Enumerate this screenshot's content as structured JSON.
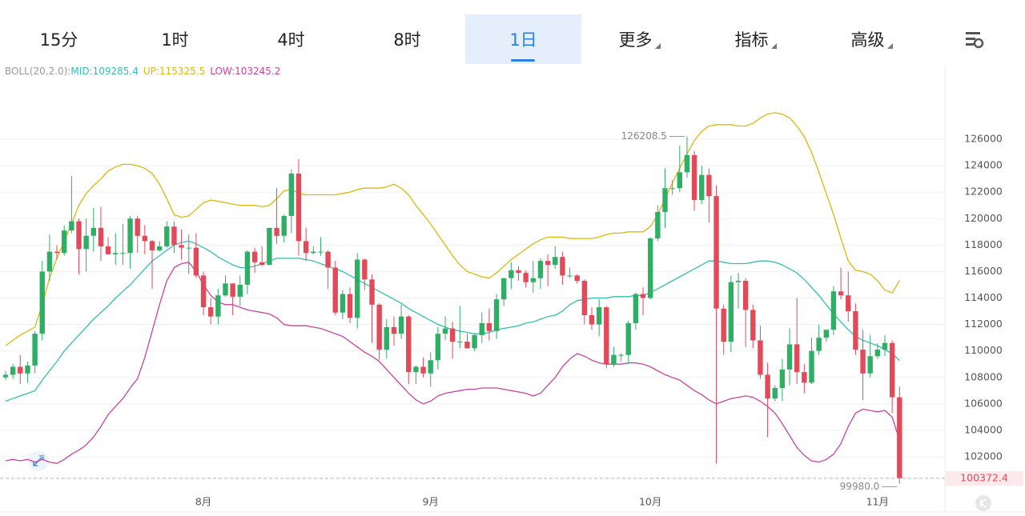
{
  "tabs": [
    "15分",
    "1时",
    "4时",
    "8时",
    "1日",
    "更多",
    "指标",
    "高级"
  ],
  "dropdown_tabs": [
    5,
    6,
    7
  ],
  "active_tab": 4,
  "chart": {
    "type": "candlestick",
    "indicator_label": "BOLL(20,2.0):",
    "up_color": "#2fae66",
    "down_color": "#e24a5a",
    "ylim": [
      99700,
      130000
    ],
    "yticks": [
      102000,
      104000,
      106000,
      108000,
      110000,
      112000,
      114000,
      116000,
      118000,
      120000,
      122000,
      124000,
      126000
    ],
    "grid": true,
    "categories": [
      null,
      null,
      null,
      null,
      null,
      null,
      null,
      null,
      null,
      null,
      null,
      null,
      null,
      null,
      null,
      null,
      null,
      null,
      null,
      null,
      null,
      null,
      null,
      null,
      null,
      null,
      null,
      "8月",
      null,
      null,
      null,
      null,
      null,
      null,
      null,
      null,
      null,
      null,
      null,
      null,
      null,
      null,
      null,
      null,
      null,
      null,
      null,
      null,
      null,
      null,
      null,
      null,
      null,
      null,
      null,
      null,
      null,
      null,
      "9月",
      null,
      null,
      null,
      null,
      null,
      null,
      null,
      null,
      null,
      null,
      null,
      null,
      null,
      null,
      null,
      null,
      null,
      null,
      null,
      null,
      null,
      null,
      null,
      null,
      null,
      null,
      null,
      null,
      null,
      "10月",
      null,
      null,
      null,
      null,
      null,
      null,
      null,
      null,
      null,
      null,
      null,
      null,
      null,
      null,
      null,
      null,
      null,
      null,
      null,
      null,
      null,
      null,
      null,
      null,
      null,
      null,
      null,
      null,
      null,
      null,
      "11月",
      null,
      null,
      null
    ],
    "candles": [
      [
        108000,
        108500,
        107800,
        108200
      ],
      [
        108200,
        109000,
        107900,
        108800
      ],
      [
        108800,
        109700,
        107500,
        108300
      ],
      [
        108300,
        109200,
        107600,
        108900
      ],
      [
        108900,
        111500,
        108300,
        111300
      ],
      [
        111300,
        116800,
        110800,
        116000
      ],
      [
        116000,
        118800,
        115300,
        117500
      ],
      [
        117500,
        118000,
        116900,
        117400
      ],
      [
        117400,
        119500,
        117200,
        119100
      ],
      [
        119100,
        123200,
        118900,
        119800
      ],
      [
        119800,
        120000,
        115800,
        117700
      ],
      [
        117700,
        120000,
        116000,
        118700
      ],
      [
        118700,
        120800,
        117500,
        119300
      ],
      [
        119300,
        120900,
        116800,
        117900
      ],
      [
        117900,
        118600,
        117300,
        117300
      ],
      [
        117300,
        118900,
        116500,
        117400
      ],
      [
        117400,
        119600,
        116500,
        117400
      ],
      [
        117400,
        120200,
        116200,
        120000
      ],
      [
        120000,
        120200,
        117400,
        118700
      ],
      [
        118700,
        119500,
        117300,
        118300
      ],
      [
        118300,
        118400,
        114700,
        117600
      ],
      [
        117600,
        118300,
        117500,
        117900
      ],
      [
        117900,
        119800,
        117800,
        119400
      ],
      [
        119400,
        119800,
        117400,
        118000
      ],
      [
        118000,
        119200,
        116900,
        117800
      ],
      [
        117800,
        118800,
        115800,
        117800
      ],
      [
        117800,
        118900,
        115500,
        115700
      ],
      [
        115700,
        116000,
        112700,
        113300
      ],
      [
        113300,
        114000,
        112000,
        112600
      ],
      [
        112600,
        114700,
        112000,
        114200
      ],
      [
        114200,
        115700,
        114100,
        115100
      ],
      [
        115100,
        115100,
        112700,
        114100
      ],
      [
        114100,
        115700,
        113400,
        115000
      ],
      [
        115000,
        117600,
        114300,
        117500
      ],
      [
        117500,
        117800,
        115900,
        116700
      ],
      [
        116700,
        117900,
        116400,
        116500
      ],
      [
        116500,
        119300,
        116500,
        119300
      ],
      [
        119300,
        122300,
        118100,
        118700
      ],
      [
        118700,
        120300,
        118200,
        120200
      ],
      [
        120200,
        123700,
        118900,
        123400
      ],
      [
        123400,
        124500,
        117200,
        118300
      ],
      [
        118300,
        119300,
        116800,
        117400
      ],
      [
        117400,
        117900,
        117300,
        117500
      ],
      [
        117500,
        118600,
        117200,
        117500
      ],
      [
        117500,
        117600,
        114700,
        116300
      ],
      [
        116300,
        116800,
        112700,
        112900
      ],
      [
        112900,
        114600,
        112400,
        114300
      ],
      [
        114300,
        114800,
        112100,
        112500
      ],
      [
        112500,
        117400,
        111700,
        116900
      ],
      [
        116900,
        117000,
        114600,
        115400
      ],
      [
        115400,
        115800,
        110600,
        113500
      ],
      [
        113500,
        113600,
        109300,
        110100
      ],
      [
        110100,
        112400,
        109400,
        111800
      ],
      [
        111800,
        112600,
        110400,
        111300
      ],
      [
        111300,
        113500,
        110900,
        112600
      ],
      [
        112600,
        112700,
        107500,
        108400
      ],
      [
        108400,
        108900,
        107500,
        108800
      ],
      [
        108800,
        109500,
        108000,
        108300
      ],
      [
        108300,
        109900,
        107300,
        109300
      ],
      [
        109300,
        111800,
        108600,
        111300
      ],
      [
        111300,
        112600,
        110800,
        111700
      ],
      [
        111700,
        112200,
        109400,
        110700
      ],
      [
        110700,
        113400,
        110200,
        110700
      ],
      [
        110700,
        111300,
        110200,
        110200
      ],
      [
        110200,
        111300,
        110000,
        111200
      ],
      [
        111200,
        112900,
        110600,
        112100
      ],
      [
        112100,
        113200,
        110800,
        111500
      ],
      [
        111500,
        114300,
        110900,
        113900
      ],
      [
        113900,
        115500,
        113400,
        115500
      ],
      [
        115500,
        116700,
        114700,
        116100
      ],
      [
        116100,
        116400,
        115300,
        115900
      ],
      [
        115900,
        116100,
        114800,
        115200
      ],
      [
        115200,
        116800,
        114400,
        115500
      ],
      [
        115500,
        117000,
        114700,
        116800
      ],
      [
        116800,
        117300,
        114900,
        116500
      ],
      [
        116500,
        117900,
        116200,
        117100
      ],
      [
        117100,
        117500,
        115000,
        115700
      ],
      [
        115700,
        116300,
        115500,
        115700
      ],
      [
        115700,
        115800,
        115100,
        115300
      ],
      [
        115300,
        115400,
        112000,
        112700
      ],
      [
        112700,
        113300,
        111600,
        112000
      ],
      [
        112000,
        113900,
        111100,
        113300
      ],
      [
        113300,
        113400,
        108700,
        109000
      ],
      [
        109000,
        110300,
        108800,
        109700
      ],
      [
        109700,
        109800,
        109200,
        109700
      ],
      [
        109700,
        112300,
        109000,
        112100
      ],
      [
        112100,
        114400,
        111600,
        114300
      ],
      [
        114300,
        114800,
        112700,
        114000
      ],
      [
        114000,
        118600,
        113900,
        118500
      ],
      [
        118500,
        121000,
        118300,
        120500
      ],
      [
        120500,
        123800,
        119300,
        122300
      ],
      [
        122300,
        122900,
        121800,
        122300
      ],
      [
        122300,
        125500,
        122000,
        123500
      ],
      [
        123500,
        126208.5,
        123100,
        124800
      ],
      [
        124800,
        125100,
        120600,
        121400
      ],
      [
        121400,
        124000,
        121100,
        123300
      ],
      [
        123300,
        123800,
        119700,
        121700
      ],
      [
        121700,
        122500,
        101500,
        113200
      ],
      [
        113200,
        113500,
        109700,
        110700
      ],
      [
        110700,
        115700,
        109900,
        115200
      ],
      [
        115200,
        115900,
        113200,
        115300
      ],
      [
        115300,
        115500,
        110300,
        113100
      ],
      [
        113100,
        113500,
        110200,
        110800
      ],
      [
        110800,
        111900,
        107900,
        108200
      ],
      [
        108200,
        109100,
        103500,
        106400
      ],
      [
        106400,
        107400,
        106200,
        107200
      ],
      [
        107200,
        109400,
        106200,
        108600
      ],
      [
        108600,
        111700,
        107400,
        110500
      ],
      [
        110500,
        114000,
        107500,
        108400
      ],
      [
        108400,
        109000,
        106800,
        107600
      ],
      [
        107600,
        111000,
        107500,
        110000
      ],
      [
        110000,
        112000,
        109700,
        111000
      ],
      [
        111000,
        111500,
        110700,
        111600
      ],
      [
        111600,
        114900,
        111200,
        114500
      ],
      [
        114500,
        116300,
        113900,
        114200
      ],
      [
        114200,
        116000,
        112200,
        113000
      ],
      [
        113000,
        113600,
        109700,
        110100
      ],
      [
        110100,
        111600,
        106300,
        108300
      ],
      [
        108300,
        111200,
        108000,
        109600
      ],
      [
        109600,
        110600,
        109400,
        110100
      ],
      [
        110100,
        111200,
        109600,
        110600
      ],
      [
        110600,
        110800,
        105300,
        106500
      ],
      [
        106500,
        107300,
        99980,
        100372.4
      ]
    ],
    "low_label": "99980.0",
    "boll": [
      {
        "name": "MID:",
        "color": "#33bfae",
        "values": [
          106200,
          106400,
          106600,
          106800,
          107000,
          107800,
          108500,
          109200,
          110000,
          110600,
          111200,
          111800,
          112400,
          112900,
          113400,
          114000,
          114500,
          115000,
          115600,
          116200,
          116800,
          117200,
          117600,
          118000,
          118200,
          118300,
          118100,
          117800,
          117500,
          117100,
          116800,
          116500,
          116300,
          116300,
          116400,
          116600,
          116800,
          117000,
          117000,
          117000,
          117000,
          116900,
          116800,
          116600,
          116400,
          116200,
          116000,
          115700,
          115400,
          115100,
          114800,
          114500,
          114200,
          113900,
          113600,
          113200,
          112900,
          112600,
          112300,
          112000,
          111800,
          111600,
          111500,
          111400,
          111300,
          111300,
          111400,
          111600,
          111700,
          111800,
          111900,
          112100,
          112200,
          112400,
          112600,
          112700,
          113000,
          113500,
          113800,
          113900,
          114000,
          114000,
          114000,
          114100,
          114100,
          114100,
          114200,
          114200,
          114400,
          114700,
          115000,
          115300,
          115600,
          115900,
          116200,
          116500,
          116800,
          116800,
          116700,
          116600,
          116600,
          116600,
          116700,
          116800,
          116800,
          116700,
          116500,
          116200,
          115900,
          115400,
          114800,
          114200,
          113500,
          112800,
          112200,
          111600,
          111100,
          110800,
          110600,
          110400,
          110100,
          109800,
          109285.4
        ]
      },
      {
        "name": "UP:",
        "color": "#d9b80f",
        "values": [
          110400,
          110800,
          111200,
          111500,
          111800,
          113500,
          115500,
          117000,
          118300,
          119600,
          121000,
          121900,
          122500,
          123000,
          123600,
          123900,
          124100,
          124100,
          124000,
          123800,
          123400,
          122600,
          121500,
          120300,
          120100,
          120200,
          120700,
          121200,
          121400,
          121300,
          121200,
          121100,
          121000,
          121000,
          121000,
          120900,
          121000,
          121500,
          122100,
          122200,
          121900,
          121800,
          121800,
          121800,
          121800,
          121800,
          121900,
          122000,
          122200,
          122300,
          122300,
          122300,
          122400,
          122600,
          122300,
          121800,
          121000,
          120300,
          119600,
          118800,
          118000,
          117200,
          116500,
          116000,
          115800,
          115600,
          115500,
          115900,
          116400,
          116900,
          117300,
          117700,
          118100,
          118400,
          118600,
          118600,
          118600,
          118500,
          118500,
          118500,
          118500,
          118600,
          118800,
          118900,
          118900,
          119000,
          119000,
          119000,
          119400,
          120300,
          121500,
          122700,
          123800,
          124900,
          125900,
          126600,
          127000,
          127100,
          127100,
          127100,
          127000,
          127000,
          127200,
          127600,
          127900,
          128000,
          127900,
          127600,
          127000,
          126200,
          125000,
          123500,
          121900,
          120300,
          118500,
          116800,
          116100,
          116000,
          115800,
          115300,
          114600,
          114400,
          115325.5
        ]
      },
      {
        "name": "LOW:",
        "color": "#c8449c",
        "values": [
          101700,
          101800,
          101700,
          101800,
          101600,
          101800,
          101600,
          101500,
          101800,
          102200,
          102500,
          102900,
          103500,
          104300,
          105200,
          105800,
          106400,
          107200,
          107900,
          109500,
          111500,
          113500,
          115300,
          116300,
          116600,
          116700,
          116000,
          115000,
          114200,
          113700,
          113500,
          113500,
          113300,
          113100,
          113000,
          112900,
          112800,
          112500,
          112000,
          111900,
          111900,
          111900,
          111800,
          111700,
          111500,
          111300,
          111100,
          110700,
          110300,
          109900,
          109600,
          109200,
          108600,
          108000,
          107400,
          106800,
          106300,
          106000,
          106200,
          106600,
          106800,
          106900,
          107000,
          107100,
          107100,
          107200,
          107200,
          107200,
          107100,
          107000,
          106900,
          106800,
          106600,
          106800,
          107400,
          108000,
          108800,
          109400,
          109800,
          109600,
          109300,
          109100,
          109000,
          109000,
          109000,
          109100,
          109100,
          109000,
          108800,
          108500,
          108200,
          108000,
          107800,
          107400,
          107000,
          106700,
          106300,
          106000,
          106200,
          106400,
          106500,
          106600,
          106500,
          106200,
          105800,
          105300,
          104500,
          103600,
          102700,
          102100,
          101700,
          101600,
          101800,
          102200,
          103000,
          104300,
          105300,
          105600,
          105500,
          105400,
          105500,
          105000,
          103245.2
        ]
      }
    ]
  }
}
